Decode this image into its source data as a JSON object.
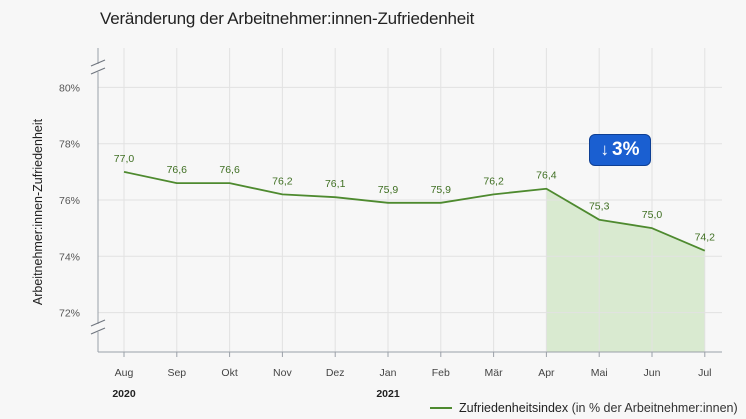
{
  "chart_data": {
    "type": "line",
    "title": "Veränderung der Arbeitnehmer:innen-Zufriedenheit",
    "ylabel": "Arbeitnehmer:innen-Zufriedenheit",
    "xlabel": "",
    "categories": [
      "Aug",
      "Sep",
      "Okt",
      "Nov",
      "Dez",
      "Jan",
      "Feb",
      "Mär",
      "Apr",
      "Mai",
      "Jun",
      "Jul"
    ],
    "year_labels": [
      {
        "category": "Aug",
        "label": "2020"
      },
      {
        "category": "Jan",
        "label": "2021"
      }
    ],
    "series": [
      {
        "name": "Zufriedenheitsindex",
        "values": [
          77.0,
          76.6,
          76.6,
          76.2,
          76.1,
          75.9,
          75.9,
          76.2,
          76.4,
          75.3,
          75.0,
          74.2
        ],
        "value_labels": [
          "77,0",
          "76,6",
          "76,6",
          "76,2",
          "76,1",
          "75,9",
          "75,9",
          "76,2",
          "76,4",
          "75,3",
          "75,0",
          "74,2"
        ],
        "color": "#4e8a2f"
      }
    ],
    "ylim": [
      70.6,
      81.4
    ],
    "yticks": [
      72,
      74,
      76,
      78,
      80
    ],
    "ytick_labels": [
      "72%",
      "74%",
      "76%",
      "78%",
      "80%"
    ],
    "axis_break": true,
    "grid": true,
    "highlight": {
      "from": "Apr",
      "to": "Jul",
      "fill": "#d9ead0"
    },
    "annotation": {
      "arrow": "↓",
      "text": "3%",
      "color": "#1a5fd1"
    },
    "legend": {
      "label": "Zufriedenheitsindex",
      "unit": "(in % der Arbeitnehmer:innen)",
      "placement": "bottom-right"
    }
  }
}
